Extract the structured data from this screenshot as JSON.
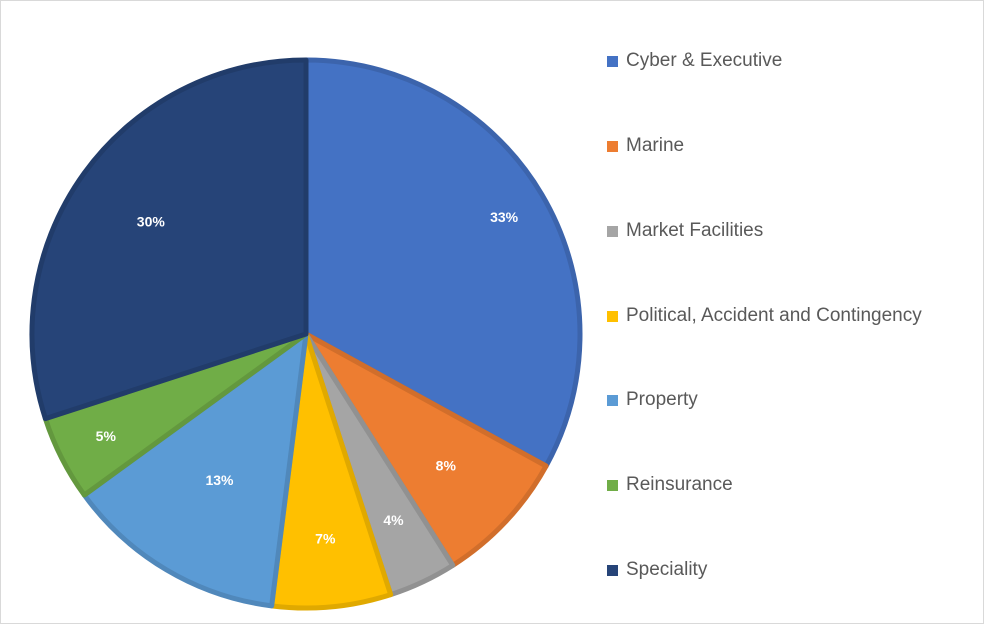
{
  "chart_data": {
    "type": "pie",
    "title": "",
    "legend_position": "right",
    "slices": [
      {
        "name": "Cyber & Executive",
        "value": 33,
        "label": "33%",
        "color": "#4472C4"
      },
      {
        "name": "Marine",
        "value": 8,
        "label": "8%",
        "color": "#ED7D31"
      },
      {
        "name": "Market Facilities",
        "value": 4,
        "label": "4%",
        "color": "#A5A5A5"
      },
      {
        "name": "Political, Accident and Contingency",
        "value": 7,
        "label": "7%",
        "color": "#FFC000"
      },
      {
        "name": "Property",
        "value": 13,
        "label": "13%",
        "color": "#5B9BD5"
      },
      {
        "name": "Reinsurance",
        "value": 5,
        "label": "5%",
        "color": "#70AD47"
      },
      {
        "name": "Speciality",
        "value": 30,
        "label": "30%",
        "color": "#264478"
      }
    ]
  }
}
